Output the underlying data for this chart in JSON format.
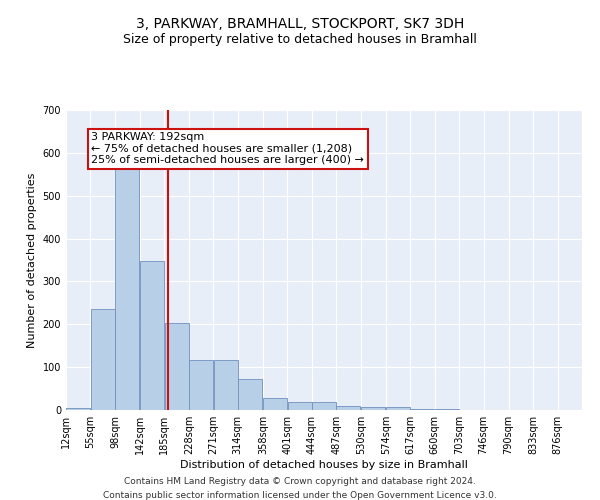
{
  "title": "3, PARKWAY, BRAMHALL, STOCKPORT, SK7 3DH",
  "subtitle": "Size of property relative to detached houses in Bramhall",
  "xlabel": "Distribution of detached houses by size in Bramhall",
  "ylabel": "Number of detached properties",
  "background_color": "#e8eef8",
  "bar_color": "#b8cfe8",
  "bar_edge_color": "#7090c0",
  "vline_color": "#cc1111",
  "annotation_text": "3 PARKWAY: 192sqm\n← 75% of detached houses are smaller (1,208)\n25% of semi-detached houses are larger (400) →",
  "annotation_box_color": "white",
  "annotation_box_edge_color": "#cc1111",
  "footer_line1": "Contains HM Land Registry data © Crown copyright and database right 2024.",
  "footer_line2": "Contains public sector information licensed under the Open Government Licence v3.0.",
  "bins": [
    12,
    55,
    98,
    142,
    185,
    228,
    271,
    314,
    358,
    401,
    444,
    487,
    530,
    574,
    617,
    660,
    703,
    746,
    790,
    833,
    876
  ],
  "bar_heights": [
    5,
    235,
    585,
    348,
    203,
    117,
    117,
    72,
    27,
    18,
    18,
    10,
    7,
    7,
    2,
    2,
    1,
    0,
    0,
    0
  ],
  "vline_x": 192,
  "ylim": [
    0,
    700
  ],
  "yticks": [
    0,
    100,
    200,
    300,
    400,
    500,
    600,
    700
  ],
  "title_fontsize": 10,
  "subtitle_fontsize": 9,
  "axis_label_fontsize": 8,
  "tick_fontsize": 7,
  "footer_fontsize": 6.5,
  "annotation_fontsize": 8
}
